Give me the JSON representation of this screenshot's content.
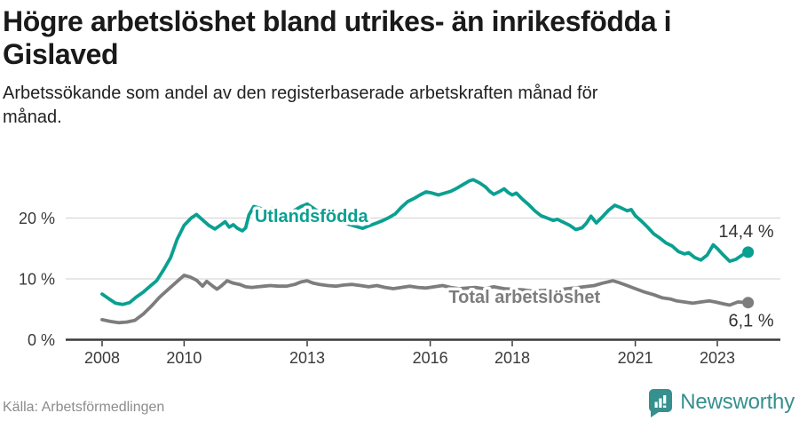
{
  "header": {
    "title_lines": [
      "Högre arbetslöshet bland utrikes- än inrikesfödda i",
      "Gislaved"
    ],
    "subtitle_lines": [
      "Arbetssökande som andel av den registerbaserade arbetskraften månad för",
      "månad."
    ]
  },
  "footer": {
    "source": "Källa: Arbetsförmedlingen",
    "brand": "Newsworthy"
  },
  "colors": {
    "foreign_born_line": "#0aa091",
    "total_line": "#7d7d7d",
    "axis": "#3a3a3a",
    "tick_label": "#3a3a3a",
    "gridline": "#d9d9d9",
    "value_label": "#333333",
    "title_text": "#1a1a1a",
    "source_text": "#8c8c8c",
    "brand_teal": "#35908e",
    "background": "#ffffff",
    "label_halo": "#ffffff"
  },
  "chart_data": {
    "type": "line",
    "title": "Högre arbetslöshet bland utrikes- än inrikesfödda i Gislaved",
    "subtitle": "Arbetssökande som andel av den registerbaserade arbetskraften månad för månad.",
    "x_unit": "decimal year (monthly data)",
    "xlim": [
      2008,
      2023.75
    ],
    "ylim": [
      0,
      27
    ],
    "grid": "horizontal",
    "legend_position": "inline-labels",
    "xticks": [
      {
        "year": 2008,
        "label": "2008"
      },
      {
        "year": 2010,
        "label": "2010"
      },
      {
        "year": 2013,
        "label": "2013"
      },
      {
        "year": 2016,
        "label": "2016"
      },
      {
        "year": 2018,
        "label": "2018"
      },
      {
        "year": 2021,
        "label": "2021"
      },
      {
        "year": 2023,
        "label": "2023"
      }
    ],
    "yticks": [
      {
        "value": 0,
        "label": "0 %"
      },
      {
        "value": 10,
        "label": "10 %"
      },
      {
        "value": 20,
        "label": "20 %"
      }
    ],
    "series": [
      {
        "name": "Utlandsfödda",
        "color": "#0aa091",
        "end_value": 14.4,
        "end_label": "14,4 %",
        "end_label_position": "above",
        "line_label": {
          "name": "Utlandsfödda",
          "x": 2011.72,
          "y": 20.4
        },
        "points": [
          [
            2008.0,
            7.5
          ],
          [
            2008.17,
            6.7
          ],
          [
            2008.33,
            6.0
          ],
          [
            2008.5,
            5.8
          ],
          [
            2008.67,
            6.1
          ],
          [
            2008.83,
            7.0
          ],
          [
            2009.0,
            7.8
          ],
          [
            2009.17,
            8.8
          ],
          [
            2009.33,
            9.7
          ],
          [
            2009.5,
            11.5
          ],
          [
            2009.67,
            13.5
          ],
          [
            2009.83,
            16.5
          ],
          [
            2010.0,
            18.8
          ],
          [
            2010.17,
            20.0
          ],
          [
            2010.3,
            20.6
          ],
          [
            2010.45,
            19.7
          ],
          [
            2010.6,
            18.8
          ],
          [
            2010.75,
            18.2
          ],
          [
            2010.9,
            18.9
          ],
          [
            2011.0,
            19.4
          ],
          [
            2011.1,
            18.5
          ],
          [
            2011.2,
            18.9
          ],
          [
            2011.3,
            18.3
          ],
          [
            2011.42,
            17.9
          ],
          [
            2011.5,
            18.4
          ],
          [
            2011.58,
            20.5
          ],
          [
            2011.7,
            21.9
          ],
          [
            2011.85,
            21.6
          ],
          [
            2012.0,
            21.2
          ],
          [
            2012.15,
            21.6
          ],
          [
            2012.3,
            21.1
          ],
          [
            2012.5,
            20.7
          ],
          [
            2012.7,
            21.3
          ],
          [
            2012.85,
            21.9
          ],
          [
            2013.0,
            22.3
          ],
          [
            2013.2,
            21.4
          ],
          [
            2013.4,
            20.5
          ],
          [
            2013.6,
            19.8
          ],
          [
            2013.8,
            19.3
          ],
          [
            2014.0,
            19.0
          ],
          [
            2014.2,
            18.6
          ],
          [
            2014.35,
            18.3
          ],
          [
            2014.5,
            18.7
          ],
          [
            2014.7,
            19.2
          ],
          [
            2014.85,
            19.6
          ],
          [
            2015.0,
            20.1
          ],
          [
            2015.15,
            20.7
          ],
          [
            2015.3,
            21.8
          ],
          [
            2015.45,
            22.7
          ],
          [
            2015.6,
            23.2
          ],
          [
            2015.75,
            23.8
          ],
          [
            2015.9,
            24.3
          ],
          [
            2016.05,
            24.1
          ],
          [
            2016.2,
            23.8
          ],
          [
            2016.35,
            24.1
          ],
          [
            2016.5,
            24.4
          ],
          [
            2016.65,
            24.9
          ],
          [
            2016.8,
            25.5
          ],
          [
            2016.95,
            26.1
          ],
          [
            2017.05,
            26.3
          ],
          [
            2017.2,
            25.8
          ],
          [
            2017.35,
            25.1
          ],
          [
            2017.45,
            24.4
          ],
          [
            2017.55,
            23.9
          ],
          [
            2017.7,
            24.4
          ],
          [
            2017.8,
            24.8
          ],
          [
            2017.9,
            24.2
          ],
          [
            2018.0,
            23.8
          ],
          [
            2018.1,
            24.1
          ],
          [
            2018.25,
            23.1
          ],
          [
            2018.4,
            22.2
          ],
          [
            2018.55,
            21.2
          ],
          [
            2018.7,
            20.4
          ],
          [
            2018.85,
            20.0
          ],
          [
            2019.0,
            19.6
          ],
          [
            2019.1,
            19.8
          ],
          [
            2019.25,
            19.3
          ],
          [
            2019.4,
            18.8
          ],
          [
            2019.55,
            18.1
          ],
          [
            2019.7,
            18.4
          ],
          [
            2019.8,
            19.1
          ],
          [
            2019.92,
            20.3
          ],
          [
            2020.05,
            19.2
          ],
          [
            2020.2,
            20.2
          ],
          [
            2020.35,
            21.3
          ],
          [
            2020.5,
            22.1
          ],
          [
            2020.65,
            21.7
          ],
          [
            2020.8,
            21.2
          ],
          [
            2020.9,
            21.4
          ],
          [
            2021.0,
            20.4
          ],
          [
            2021.15,
            19.5
          ],
          [
            2021.3,
            18.5
          ],
          [
            2021.45,
            17.4
          ],
          [
            2021.6,
            16.7
          ],
          [
            2021.75,
            15.9
          ],
          [
            2021.9,
            15.4
          ],
          [
            2022.05,
            14.5
          ],
          [
            2022.2,
            14.1
          ],
          [
            2022.3,
            14.3
          ],
          [
            2022.45,
            13.5
          ],
          [
            2022.6,
            13.1
          ],
          [
            2022.75,
            13.9
          ],
          [
            2022.9,
            15.6
          ],
          [
            2023.0,
            15.0
          ],
          [
            2023.15,
            13.9
          ],
          [
            2023.3,
            12.9
          ],
          [
            2023.45,
            13.2
          ],
          [
            2023.6,
            13.9
          ],
          [
            2023.75,
            14.4
          ]
        ]
      },
      {
        "name": "Total arbetslöshet",
        "color": "#7d7d7d",
        "end_value": 6.1,
        "end_label": "6,1 %",
        "end_label_position": "below",
        "line_label": {
          "name": "Total arbetslöshet",
          "x": 2016.45,
          "y": 7.1
        },
        "points": [
          [
            2008.0,
            3.3
          ],
          [
            2008.2,
            3.0
          ],
          [
            2008.4,
            2.8
          ],
          [
            2008.6,
            2.9
          ],
          [
            2008.8,
            3.2
          ],
          [
            2009.0,
            4.2
          ],
          [
            2009.2,
            5.5
          ],
          [
            2009.4,
            7.0
          ],
          [
            2009.6,
            8.2
          ],
          [
            2009.8,
            9.4
          ],
          [
            2010.0,
            10.6
          ],
          [
            2010.15,
            10.3
          ],
          [
            2010.3,
            9.8
          ],
          [
            2010.45,
            8.8
          ],
          [
            2010.55,
            9.6
          ],
          [
            2010.7,
            8.8
          ],
          [
            2010.8,
            8.3
          ],
          [
            2010.9,
            8.8
          ],
          [
            2011.05,
            9.7
          ],
          [
            2011.2,
            9.3
          ],
          [
            2011.35,
            9.1
          ],
          [
            2011.5,
            8.7
          ],
          [
            2011.65,
            8.6
          ],
          [
            2011.8,
            8.7
          ],
          [
            2011.95,
            8.8
          ],
          [
            2012.1,
            8.9
          ],
          [
            2012.3,
            8.8
          ],
          [
            2012.5,
            8.8
          ],
          [
            2012.7,
            9.1
          ],
          [
            2012.85,
            9.5
          ],
          [
            2013.0,
            9.7
          ],
          [
            2013.15,
            9.3
          ],
          [
            2013.3,
            9.1
          ],
          [
            2013.5,
            8.9
          ],
          [
            2013.7,
            8.8
          ],
          [
            2013.9,
            9.0
          ],
          [
            2014.1,
            9.1
          ],
          [
            2014.3,
            8.9
          ],
          [
            2014.5,
            8.7
          ],
          [
            2014.7,
            8.9
          ],
          [
            2014.9,
            8.6
          ],
          [
            2015.1,
            8.4
          ],
          [
            2015.3,
            8.6
          ],
          [
            2015.5,
            8.8
          ],
          [
            2015.7,
            8.6
          ],
          [
            2015.9,
            8.5
          ],
          [
            2016.1,
            8.7
          ],
          [
            2016.3,
            8.9
          ],
          [
            2016.5,
            8.6
          ],
          [
            2016.7,
            8.4
          ],
          [
            2016.9,
            8.5
          ],
          [
            2017.1,
            8.6
          ],
          [
            2017.3,
            8.4
          ],
          [
            2017.55,
            8.7
          ],
          [
            2017.8,
            8.4
          ],
          [
            2018.0,
            8.3
          ],
          [
            2018.25,
            8.2
          ],
          [
            2018.5,
            8.0
          ],
          [
            2018.75,
            8.1
          ],
          [
            2019.0,
            8.2
          ],
          [
            2019.25,
            8.3
          ],
          [
            2019.5,
            8.5
          ],
          [
            2019.75,
            8.7
          ],
          [
            2020.0,
            8.9
          ],
          [
            2020.2,
            9.3
          ],
          [
            2020.45,
            9.7
          ],
          [
            2020.6,
            9.4
          ],
          [
            2020.8,
            8.9
          ],
          [
            2021.0,
            8.4
          ],
          [
            2021.2,
            7.9
          ],
          [
            2021.45,
            7.4
          ],
          [
            2021.65,
            6.9
          ],
          [
            2021.85,
            6.7
          ],
          [
            2022.0,
            6.4
          ],
          [
            2022.2,
            6.2
          ],
          [
            2022.4,
            6.0
          ],
          [
            2022.6,
            6.2
          ],
          [
            2022.8,
            6.4
          ],
          [
            2022.95,
            6.2
          ],
          [
            2023.15,
            5.9
          ],
          [
            2023.3,
            5.7
          ],
          [
            2023.5,
            6.2
          ],
          [
            2023.75,
            6.1
          ]
        ]
      }
    ]
  }
}
